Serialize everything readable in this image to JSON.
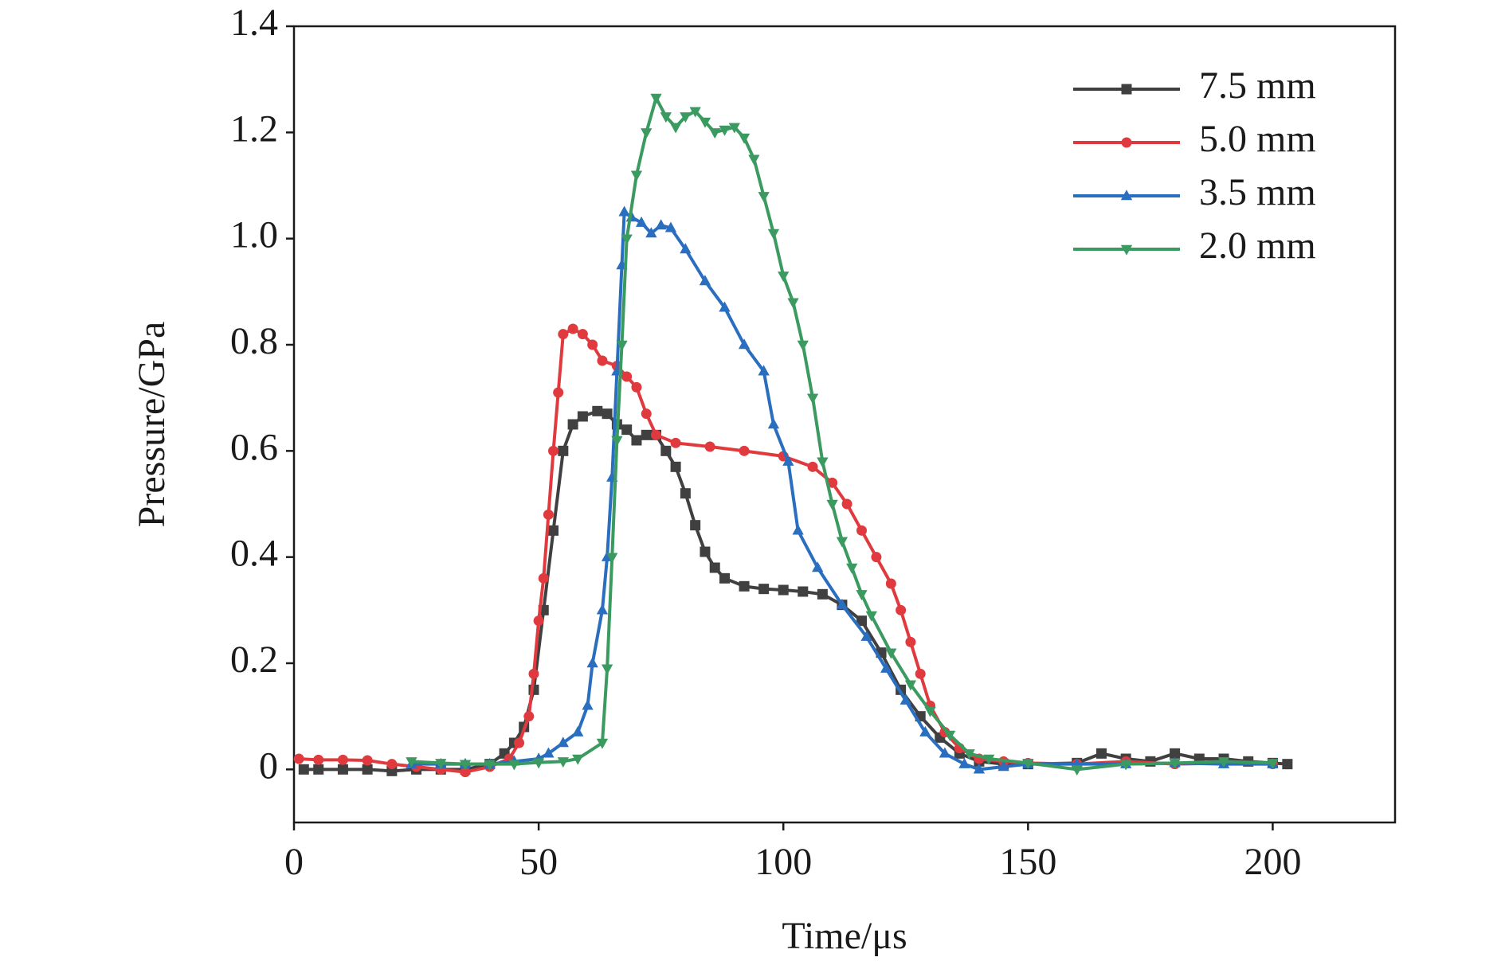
{
  "chart_data": {
    "type": "line",
    "xlabel": "Time/μs",
    "ylabel": "Pressure/GPa",
    "xlim": [
      0,
      225
    ],
    "xticks": [
      0,
      50,
      100,
      150,
      200
    ],
    "ylim": [
      -0.1,
      1.4
    ],
    "yticks": [
      0,
      0.2,
      0.4,
      0.6,
      0.8,
      {
        "value": 1,
        "label": "1.0"
      },
      1.2,
      1.4
    ],
    "legend": "upper right",
    "series": [
      {
        "name": "7.5 mm",
        "color": "#404040",
        "marker": "square",
        "x": [
          2,
          5,
          10,
          15,
          20,
          25,
          30,
          35,
          40,
          43,
          45,
          47,
          49,
          51,
          53,
          55,
          57,
          59,
          62,
          64,
          66,
          68,
          70,
          72,
          74,
          76,
          78,
          80,
          82,
          84,
          86,
          88,
          92,
          96,
          100,
          104,
          108,
          112,
          116,
          120,
          124,
          128,
          132,
          136,
          140,
          145,
          150,
          160,
          165,
          170,
          175,
          180,
          185,
          190,
          195,
          200,
          203
        ],
        "values": [
          0,
          0,
          0,
          0,
          -0.003,
          0,
          0,
          0,
          0.01,
          0.03,
          0.05,
          0.08,
          0.15,
          0.3,
          0.45,
          0.6,
          0.65,
          0.665,
          0.675,
          0.67,
          0.65,
          0.64,
          0.62,
          0.63,
          0.63,
          0.6,
          0.57,
          0.52,
          0.46,
          0.41,
          0.38,
          0.36,
          0.345,
          0.34,
          0.338,
          0.335,
          0.33,
          0.31,
          0.28,
          0.22,
          0.15,
          0.1,
          0.06,
          0.03,
          0.015,
          0.01,
          0.01,
          0.012,
          0.03,
          0.02,
          0.015,
          0.03,
          0.02,
          0.02,
          0.015,
          0.012,
          0.01
        ]
      },
      {
        "name": "5.0 mm",
        "color": "#e03a3e",
        "marker": "circle",
        "x": [
          1,
          5,
          10,
          15,
          20,
          25,
          30,
          35,
          40,
          44,
          46,
          48,
          49,
          50,
          51,
          52,
          53,
          54,
          55,
          57,
          59,
          61,
          63,
          66,
          68,
          70,
          72,
          74,
          78,
          85,
          92,
          100,
          106,
          110,
          113,
          116,
          119,
          122,
          124,
          126,
          128,
          130,
          133,
          136,
          140,
          145,
          150,
          160,
          170,
          180,
          190,
          200
        ],
        "values": [
          0.02,
          0.018,
          0.018,
          0.017,
          0.01,
          0.005,
          0,
          -0.005,
          0.005,
          0.02,
          0.05,
          0.1,
          0.18,
          0.28,
          0.36,
          0.48,
          0.6,
          0.71,
          0.82,
          0.83,
          0.82,
          0.8,
          0.77,
          0.76,
          0.74,
          0.72,
          0.67,
          0.63,
          0.615,
          0.608,
          0.6,
          0.59,
          0.57,
          0.54,
          0.5,
          0.45,
          0.4,
          0.35,
          0.3,
          0.24,
          0.18,
          0.12,
          0.07,
          0.04,
          0.02,
          0.015,
          0.012,
          0.01,
          0.015,
          0.01,
          0.012,
          0.01
        ]
      },
      {
        "name": "3.5 mm",
        "color": "#2a6ebf",
        "marker": "triangle",
        "x": [
          24,
          30,
          35,
          40,
          45,
          50,
          52,
          55,
          58,
          60,
          61,
          63,
          64,
          65,
          66,
          67,
          67.5,
          69,
          71,
          73,
          75,
          77,
          80,
          84,
          88,
          92,
          96,
          98,
          101,
          103,
          107,
          112,
          117,
          121,
          125,
          129,
          133,
          137,
          140,
          145,
          150,
          160,
          170,
          180,
          190,
          200
        ],
        "values": [
          0.01,
          0.01,
          0.01,
          0.01,
          0.015,
          0.02,
          0.03,
          0.05,
          0.07,
          0.12,
          0.2,
          0.3,
          0.4,
          0.55,
          0.75,
          0.95,
          1.05,
          1.04,
          1.03,
          1.01,
          1.025,
          1.02,
          0.98,
          0.92,
          0.87,
          0.8,
          0.75,
          0.65,
          0.58,
          0.45,
          0.38,
          0.31,
          0.25,
          0.19,
          0.13,
          0.07,
          0.03,
          0.01,
          0,
          0.005,
          0.01,
          0.01,
          0.01,
          0.012,
          0.01,
          0.01
        ]
      },
      {
        "name": "2.0 mm",
        "color": "#3a9a60",
        "marker": "triangle-down",
        "x": [
          24,
          30,
          35,
          40,
          45,
          50,
          55,
          58,
          63,
          64,
          65,
          66,
          67,
          68,
          70,
          72,
          74,
          76,
          78,
          80,
          82,
          84,
          86,
          88,
          90,
          92,
          94,
          96,
          98,
          100,
          102,
          104,
          106,
          108,
          110,
          112,
          114,
          116,
          118,
          122,
          126,
          130,
          134,
          138,
          142,
          150,
          160,
          170,
          180,
          190,
          200
        ],
        "values": [
          0.015,
          0.012,
          0.01,
          0.01,
          0.01,
          0.013,
          0.015,
          0.02,
          0.05,
          0.19,
          0.4,
          0.62,
          0.8,
          1,
          1.12,
          1.2,
          1.265,
          1.23,
          1.21,
          1.23,
          1.24,
          1.22,
          1.2,
          1.205,
          1.21,
          1.19,
          1.15,
          1.08,
          1.01,
          0.93,
          0.88,
          0.8,
          0.7,
          0.58,
          0.5,
          0.43,
          0.38,
          0.33,
          0.29,
          0.22,
          0.16,
          0.11,
          0.065,
          0.03,
          0.02,
          0.012,
          0,
          0.01,
          0.012,
          0.015,
          0.012
        ]
      }
    ]
  }
}
